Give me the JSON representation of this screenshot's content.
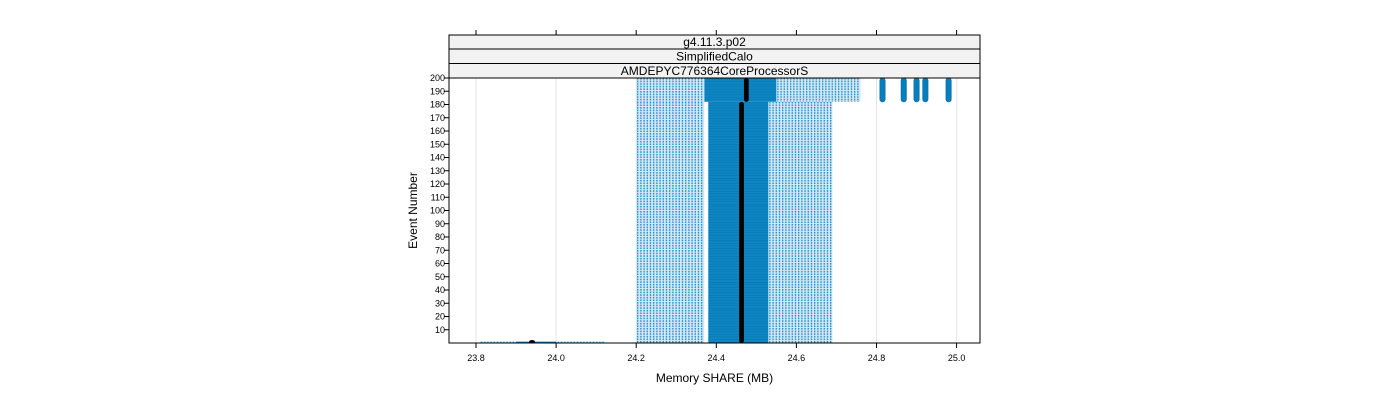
{
  "chart_data": {
    "type": "scatter",
    "strips": [
      "g4.11.3.p02",
      "SimplifiedCalo",
      "AMDEPYC776364CoreProcessorS"
    ],
    "xlabel": "Memory SHARE (MB)",
    "ylabel": "Event Number",
    "xlim": [
      23.73,
      25.06
    ],
    "ylim": [
      0,
      200
    ],
    "x_ticks": [
      23.8,
      24.0,
      24.2,
      24.4,
      24.6,
      24.8,
      25.0
    ],
    "x_tick_labels": [
      "23.8",
      "24.0",
      "24.2",
      "24.4",
      "24.6",
      "24.8",
      "25.0"
    ],
    "y_ticks": [
      10,
      20,
      30,
      40,
      50,
      60,
      70,
      80,
      90,
      100,
      110,
      120,
      130,
      140,
      150,
      160,
      170,
      180,
      190,
      200
    ],
    "y_tick_labels": [
      "10",
      "20",
      "30",
      "40",
      "50",
      "60",
      "70",
      "80",
      "90",
      "100",
      "110",
      "120",
      "130",
      "140",
      "150",
      "160",
      "170",
      "180",
      "190",
      "200"
    ],
    "vertical_grid": true,
    "colors": {
      "points": "#0080c0",
      "median": "#000000",
      "strip_bg": "#f2f2f2",
      "grid": "#e6e6e6"
    },
    "series": [
      {
        "kind": "dense_band",
        "x_from": 24.38,
        "x_to": 24.53,
        "event_from": 0,
        "event_to": 182,
        "density": "high"
      },
      {
        "kind": "dense_band",
        "x_from": 24.37,
        "x_to": 24.55,
        "event_from": 182,
        "event_to": 200,
        "density": "high"
      },
      {
        "kind": "sparse_band",
        "x_from": 24.2,
        "x_to": 24.37,
        "event_from": 0,
        "event_to": 182
      },
      {
        "kind": "sparse_band",
        "x_from": 24.53,
        "x_to": 24.69,
        "event_from": 0,
        "event_to": 182
      },
      {
        "kind": "sparse_band",
        "x_from": 24.2,
        "x_to": 24.37,
        "event_from": 182,
        "event_to": 200
      },
      {
        "kind": "sparse_band",
        "x_from": 24.55,
        "x_to": 24.76,
        "event_from": 182,
        "event_to": 200
      },
      {
        "kind": "sparse_band",
        "x_from": 23.81,
        "x_to": 24.12,
        "event_from": 0,
        "event_to": 1
      },
      {
        "kind": "dense_band",
        "x_from": 23.9,
        "x_to": 24.0,
        "event_from": 0,
        "event_to": 1
      },
      {
        "kind": "outlier_column",
        "x": 24.815,
        "event_from": 182,
        "event_to": 200
      },
      {
        "kind": "outlier_column",
        "x": 24.868,
        "event_from": 182,
        "event_to": 200
      },
      {
        "kind": "outlier_column",
        "x": 24.9,
        "event_from": 182,
        "event_to": 200
      },
      {
        "kind": "outlier_column",
        "x": 24.922,
        "event_from": 182,
        "event_to": 200
      },
      {
        "kind": "outlier_column",
        "x": 24.98,
        "event_from": 182,
        "event_to": 200
      }
    ],
    "median_lines": [
      {
        "x": 24.463,
        "event_from": 0,
        "event_to": 182
      },
      {
        "x": 24.475,
        "event_from": 182,
        "event_to": 200
      },
      {
        "x": 23.94,
        "event_from": 0,
        "event_to": 1
      }
    ]
  }
}
